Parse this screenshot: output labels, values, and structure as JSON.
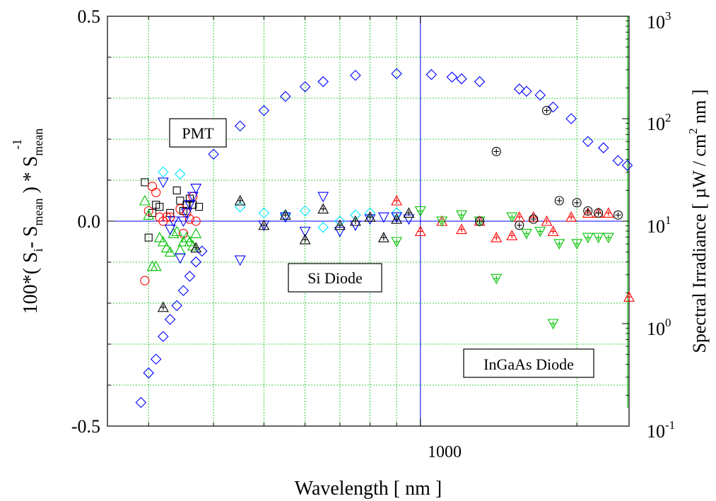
{
  "chart_data": {
    "type": "scatter",
    "xlabel": "Wavelength [ nm ]",
    "x_scale": "log",
    "xlim": [
      250,
      2520
    ],
    "x_major_tick_label": "1000",
    "left_axis": {
      "ylim": [
        -0.5,
        0.5
      ],
      "tick_labels": [
        "0.5",
        "0.0",
        "-0.5"
      ],
      "label_parts": {
        "a": "100*( S",
        "a_sub": "i",
        "b": "- S",
        "b_sub": "mean",
        "c": " ) * S",
        "c_sub": "mean",
        "sup": "-1"
      }
    },
    "right_axis": {
      "scale": "log",
      "ylim": [
        0.1,
        1000
      ],
      "label_parts": {
        "a": "Spectral Irradiance [ µW / cm",
        "sup": "2",
        "b": " nm ]"
      },
      "tick_labels": [
        {
          "base": "10",
          "exp": "3"
        },
        {
          "base": "10",
          "exp": "2"
        },
        {
          "base": "10",
          "exp": "1"
        },
        {
          "base": "10",
          "exp": "0"
        },
        {
          "base": "10",
          "exp": "-1"
        }
      ]
    },
    "grid": true,
    "labels": {
      "pmt": "PMT",
      "si": "Si Diode",
      "ingaas": "InGaAs Diode"
    },
    "colors": {
      "black": "#000000",
      "red": "#ff0000",
      "green": "#00c000",
      "blue": "#0000ff",
      "cyan": "#00e5ff",
      "grid": "#00c000"
    },
    "series": [
      {
        "name": "",
        "marker": "square",
        "color": "#000000",
        "axis": "left",
        "points": [
          [
            295,
            0.095
          ],
          [
            300,
            -0.04
          ],
          [
            305,
            0.02
          ],
          [
            310,
            0.04
          ],
          [
            315,
            0.035
          ],
          [
            330,
            0.02
          ],
          [
            340,
            0.075
          ],
          [
            345,
            0.05
          ],
          [
            350,
            0.025
          ],
          [
            355,
            0.04
          ],
          [
            360,
            0.055
          ],
          [
            365,
            0.04
          ],
          [
            375,
            0.035
          ]
        ]
      },
      {
        "name": "",
        "marker": "circle",
        "color": "#ff0000",
        "axis": "left",
        "points": [
          [
            295,
            -0.145
          ],
          [
            300,
            0.025
          ],
          [
            305,
            0.085
          ],
          [
            310,
            0.07
          ],
          [
            315,
            0.01
          ],
          [
            320,
            0.0
          ],
          [
            325,
            0.01
          ],
          [
            330,
            0.01
          ],
          [
            345,
            0.03
          ],
          [
            350,
            -0.03
          ],
          [
            355,
            0.02
          ],
          [
            360,
            0.005
          ],
          [
            365,
            0.06
          ],
          [
            370,
            0.0
          ]
        ]
      },
      {
        "name": "",
        "marker": "triangle-up",
        "color": "#00c000",
        "axis": "left",
        "points": [
          [
            295,
            0.05
          ],
          [
            300,
            0.015
          ],
          [
            305,
            -0.11
          ],
          [
            310,
            -0.11
          ],
          [
            315,
            -0.04
          ],
          [
            320,
            -0.05
          ],
          [
            325,
            -0.065
          ],
          [
            330,
            -0.075
          ],
          [
            335,
            -0.03
          ],
          [
            340,
            -0.025
          ],
          [
            345,
            -0.07
          ],
          [
            350,
            -0.05
          ],
          [
            355,
            -0.04
          ],
          [
            360,
            -0.05
          ],
          [
            365,
            -0.06
          ],
          [
            370,
            -0.03
          ]
        ]
      },
      {
        "name": "",
        "marker": "diamond",
        "color": "#00e5ff",
        "axis": "left",
        "points": [
          [
            320,
            0.12
          ],
          [
            345,
            0.115
          ],
          [
            450,
            0.035
          ],
          [
            500,
            0.02
          ],
          [
            550,
            0.015
          ],
          [
            600,
            0.025
          ],
          [
            650,
            -0.015
          ],
          [
            700,
            0.0
          ],
          [
            750,
            0.015
          ],
          [
            800,
            0.02
          ],
          [
            900,
            0.02
          ]
        ]
      },
      {
        "name": "",
        "marker": "triangle-down",
        "color": "#0000ff",
        "axis": "left",
        "points": [
          [
            320,
            0.095
          ],
          [
            330,
            -0.02
          ],
          [
            335,
            0.0
          ],
          [
            345,
            -0.09
          ],
          [
            350,
            0.0
          ],
          [
            355,
            0.02
          ],
          [
            360,
            0.04
          ],
          [
            365,
            0.06
          ],
          [
            370,
            0.08
          ],
          [
            450,
            -0.095
          ],
          [
            500,
            -0.01
          ],
          [
            550,
            0.01
          ],
          [
            600,
            -0.025
          ],
          [
            650,
            0.06
          ],
          [
            700,
            -0.025
          ],
          [
            750,
            -0.01
          ],
          [
            800,
            0.005
          ],
          [
            850,
            0.01
          ],
          [
            900,
            0.01
          ],
          [
            950,
            0.005
          ]
        ]
      },
      {
        "name": "",
        "marker": "diamond",
        "color": "#0000ff",
        "axis": "right",
        "points": [
          [
            290,
            0.17
          ],
          [
            300,
            0.33
          ],
          [
            310,
            0.45
          ],
          [
            320,
            0.75
          ],
          [
            330,
            1.1
          ],
          [
            340,
            1.5
          ],
          [
            350,
            2.1
          ],
          [
            360,
            2.9
          ],
          [
            370,
            4.0
          ],
          [
            380,
            5.1
          ],
          [
            400,
            45
          ],
          [
            450,
            85
          ],
          [
            500,
            120
          ],
          [
            550,
            165
          ],
          [
            600,
            205
          ],
          [
            650,
            230
          ],
          [
            750,
            265
          ],
          [
            900,
            275
          ],
          [
            1050,
            270
          ],
          [
            1150,
            255
          ],
          [
            1200,
            245
          ],
          [
            1300,
            230
          ],
          [
            1550,
            195
          ],
          [
            1600,
            185
          ],
          [
            1700,
            170
          ],
          [
            1800,
            130
          ],
          [
            1950,
            100
          ],
          [
            2100,
            60
          ],
          [
            2250,
            52
          ],
          [
            2400,
            39
          ],
          [
            2500,
            35
          ]
        ]
      },
      {
        "name": "",
        "marker": "triangle-up-plus",
        "color": "#000000",
        "axis": "left",
        "points": [
          [
            320,
            -0.21
          ],
          [
            370,
            -0.065
          ],
          [
            450,
            0.05
          ],
          [
            500,
            -0.01
          ],
          [
            550,
            0.015
          ],
          [
            600,
            -0.045
          ],
          [
            650,
            0.03
          ],
          [
            700,
            -0.01
          ],
          [
            750,
            0.0
          ],
          [
            800,
            0.01
          ],
          [
            850,
            -0.04
          ],
          [
            900,
            0.005
          ],
          [
            950,
            0.02
          ]
        ]
      },
      {
        "name": "",
        "marker": "triangle-up-plus",
        "color": "#ff0000",
        "axis": "left",
        "points": [
          [
            900,
            0.05
          ],
          [
            1000,
            -0.025
          ],
          [
            1100,
            0.0
          ],
          [
            1200,
            -0.02
          ],
          [
            1300,
            0.0
          ],
          [
            1400,
            -0.04
          ],
          [
            1500,
            -0.035
          ],
          [
            1550,
            0.01
          ],
          [
            1650,
            0.01
          ],
          [
            1750,
            0.0
          ],
          [
            1800,
            -0.025
          ],
          [
            1950,
            0.01
          ],
          [
            2100,
            0.02
          ],
          [
            2200,
            0.02
          ],
          [
            2300,
            0.02
          ],
          [
            2520,
            -0.185
          ]
        ]
      },
      {
        "name": "",
        "marker": "triangle-down-plus",
        "color": "#00c000",
        "axis": "left",
        "points": [
          [
            900,
            -0.05
          ],
          [
            1000,
            0.025
          ],
          [
            1100,
            0.0
          ],
          [
            1200,
            0.015
          ],
          [
            1300,
            0.0
          ],
          [
            1400,
            -0.14
          ],
          [
            1500,
            0.01
          ],
          [
            1600,
            -0.03
          ],
          [
            1700,
            -0.025
          ],
          [
            1800,
            -0.25
          ],
          [
            1850,
            -0.055
          ],
          [
            2000,
            -0.055
          ],
          [
            2100,
            -0.04
          ],
          [
            2200,
            -0.04
          ],
          [
            2300,
            -0.04
          ]
        ]
      },
      {
        "name": "",
        "marker": "circle-plus",
        "color": "#000000",
        "axis": "left",
        "points": [
          [
            1300,
            0.0
          ],
          [
            1400,
            0.17
          ],
          [
            1550,
            -0.01
          ],
          [
            1650,
            0.005
          ],
          [
            1750,
            0.27
          ],
          [
            1850,
            0.05
          ],
          [
            2000,
            0.045
          ],
          [
            2100,
            0.025
          ],
          [
            2200,
            0.02
          ],
          [
            2400,
            0.015
          ]
        ]
      }
    ]
  }
}
